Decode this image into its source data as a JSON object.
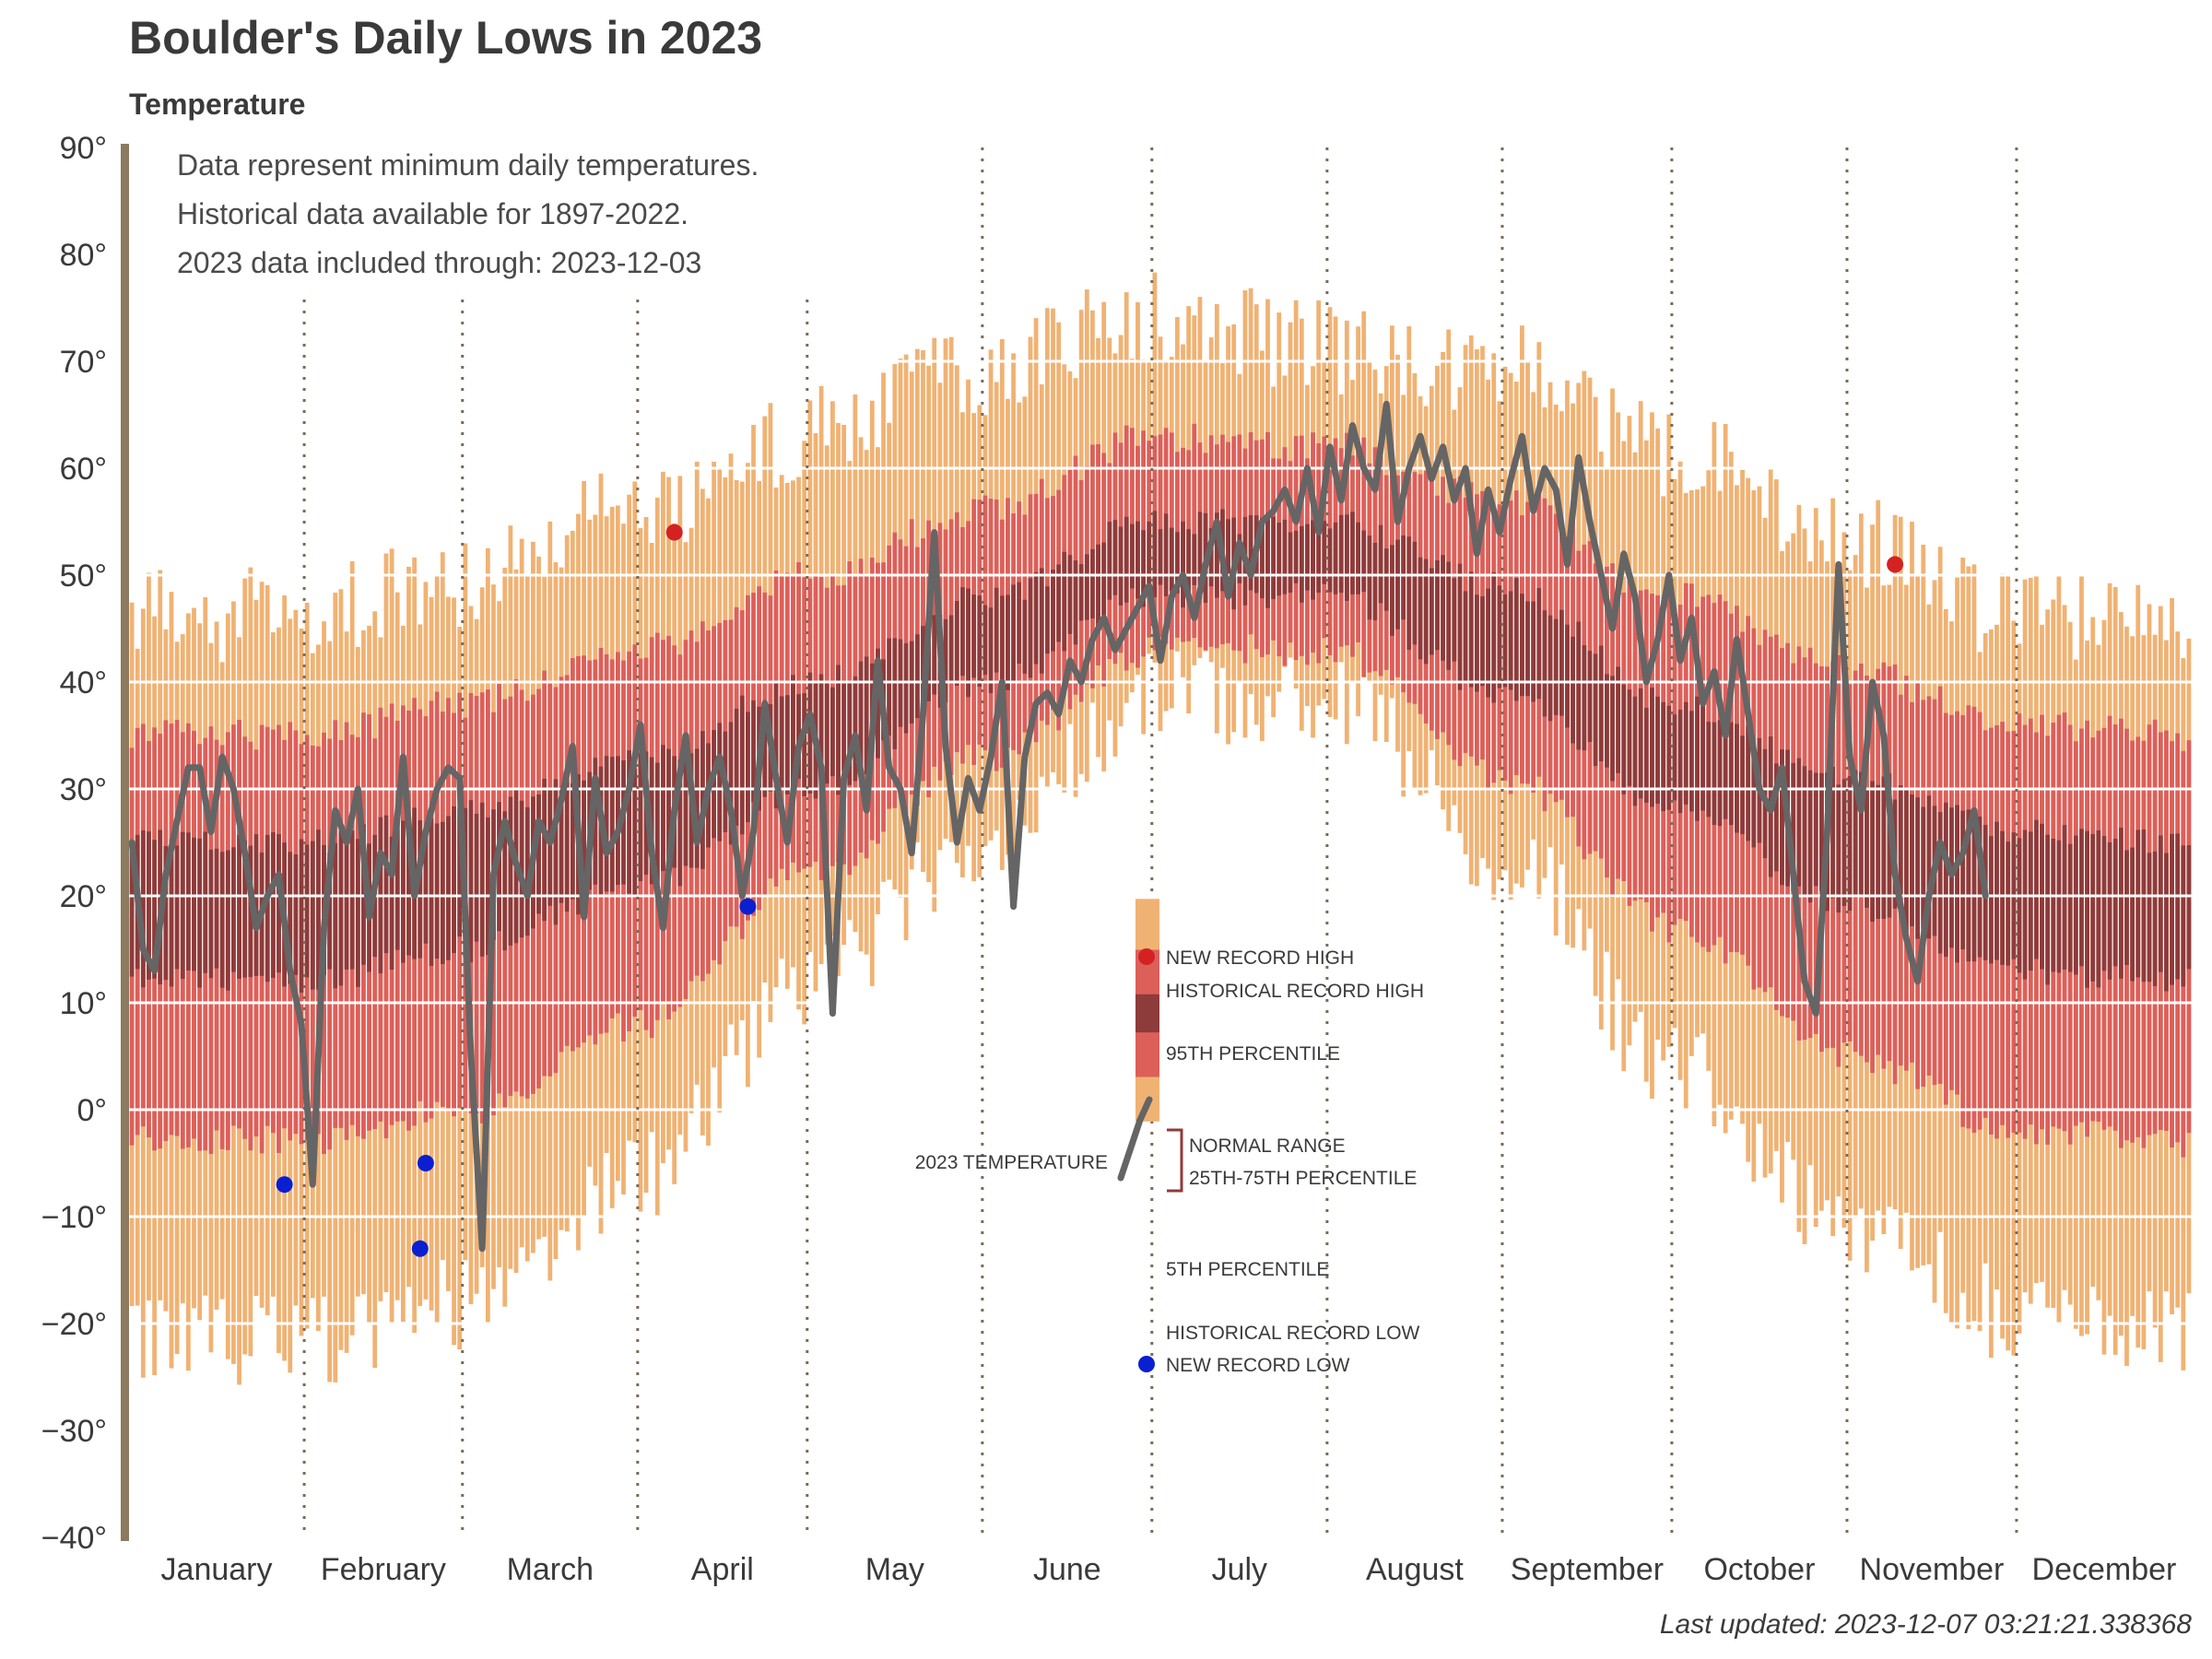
{
  "chart_data": {
    "type": "bar",
    "title": "Boulder's Daily Lows in 2023",
    "subtitle": "Temperature",
    "notes": [
      "Data represent minimum daily temperatures.",
      "Historical data available for 1897-2022.",
      "2023 data included through: 2023-12-03"
    ],
    "footer": "Last updated: 2023-12-07 03:21:21.338368",
    "xlabel": "",
    "ylabel": "",
    "ylim": [
      -40,
      90
    ],
    "yticks": [
      -40,
      -30,
      -20,
      -10,
      0,
      10,
      20,
      30,
      40,
      50,
      60,
      70,
      80,
      90
    ],
    "y_tick_labels": [
      "−40°",
      "−30°",
      "−20°",
      "−10°",
      "0°",
      "10°",
      "20°",
      "30°",
      "40°",
      "50°",
      "60°",
      "70°",
      "80°",
      "90°"
    ],
    "month_labels": [
      "January",
      "February",
      "March",
      "April",
      "May",
      "June",
      "July",
      "August",
      "September",
      "October",
      "November",
      "December"
    ],
    "grid": true,
    "colors": {
      "record_band": "#f0b273",
      "percentile_band": "#dd5f5a",
      "normal_band": "#8e3b3b",
      "temperature_line": "#656565",
      "new_record_high": "#d42222",
      "new_record_low": "#0a1fd0",
      "axis": "#8b7a60",
      "month_divider": "#7a6a55"
    },
    "seasonal_normals": {
      "description": "Historical envelope per day of year, read from bands (deg F)",
      "day_of_year": [
        1,
        32,
        60,
        91,
        121,
        152,
        182,
        213,
        244,
        274,
        305,
        335,
        365
      ],
      "record_high": [
        45,
        45,
        48,
        55,
        62,
        68,
        73,
        70,
        68,
        60,
        52,
        45,
        45
      ],
      "p95": [
        35,
        35,
        38,
        43,
        50,
        56,
        63,
        62,
        57,
        48,
        41,
        36,
        35
      ],
      "p75": [
        25,
        25,
        28,
        33,
        40,
        48,
        55,
        55,
        49,
        38,
        31,
        26,
        25
      ],
      "p25": [
        12,
        12,
        15,
        21,
        30,
        40,
        48,
        48,
        39,
        28,
        19,
        13,
        12
      ],
      "p05": [
        -3,
        -3,
        0,
        8,
        22,
        33,
        43,
        43,
        31,
        17,
        5,
        -2,
        -3
      ],
      "record_low": [
        -20,
        -20,
        -17,
        -5,
        13,
        27,
        40,
        40,
        25,
        5,
        -10,
        -18,
        -20
      ]
    },
    "series": [
      {
        "name": "2023 TEMPERATURE",
        "day_of_year": [
          1,
          3,
          5,
          7,
          9,
          11,
          13,
          15,
          17,
          19,
          21,
          23,
          25,
          27,
          29,
          31,
          33,
          35,
          37,
          39,
          41,
          43,
          45,
          47,
          49,
          51,
          53,
          55,
          57,
          59,
          61,
          63,
          65,
          67,
          69,
          71,
          73,
          75,
          77,
          79,
          81,
          83,
          85,
          87,
          89,
          91,
          93,
          95,
          97,
          99,
          101,
          103,
          105,
          107,
          109,
          111,
          113,
          115,
          117,
          119,
          121,
          123,
          125,
          127,
          129,
          131,
          133,
          135,
          137,
          139,
          141,
          143,
          145,
          147,
          149,
          151,
          153,
          155,
          157,
          159,
          161,
          163,
          165,
          167,
          169,
          171,
          173,
          175,
          177,
          179,
          181,
          183,
          185,
          187,
          189,
          191,
          193,
          195,
          197,
          199,
          201,
          203,
          205,
          207,
          209,
          211,
          213,
          215,
          217,
          219,
          221,
          223,
          225,
          227,
          229,
          231,
          233,
          235,
          237,
          239,
          241,
          243,
          245,
          247,
          249,
          251,
          253,
          255,
          257,
          259,
          261,
          263,
          265,
          267,
          269,
          271,
          273,
          275,
          277,
          279,
          281,
          283,
          285,
          287,
          289,
          291,
          293,
          295,
          297,
          299,
          301,
          303,
          305,
          307,
          309,
          311,
          313,
          315,
          317,
          319,
          321,
          323,
          325,
          327,
          329,
          331,
          333,
          335,
          337
        ],
        "values": [
          25,
          15,
          13,
          22,
          27,
          32,
          32,
          26,
          33,
          30,
          24,
          17,
          20,
          22,
          13,
          8,
          -7,
          17,
          28,
          25,
          30,
          18,
          24,
          22,
          33,
          20,
          26,
          30,
          32,
          31,
          5,
          -13,
          22,
          27,
          23,
          20,
          27,
          25,
          29,
          34,
          18,
          31,
          24,
          26,
          30,
          36,
          24,
          17,
          28,
          35,
          25,
          30,
          33,
          28,
          20,
          26,
          38,
          31,
          25,
          34,
          37,
          32,
          9,
          31,
          35,
          28,
          42,
          32,
          30,
          24,
          37,
          54,
          34,
          25,
          31,
          28,
          33,
          40,
          19,
          33,
          38,
          39,
          37,
          42,
          40,
          44,
          46,
          43,
          45,
          47,
          49,
          42,
          48,
          50,
          46,
          51,
          55,
          48,
          53,
          50,
          55,
          56,
          58,
          55,
          60,
          54,
          62,
          57,
          64,
          60,
          58,
          66,
          55,
          60,
          63,
          59,
          62,
          57,
          60,
          52,
          58,
          54,
          59,
          63,
          56,
          60,
          58,
          51,
          61,
          55,
          50,
          45,
          52,
          48,
          40,
          44,
          50,
          42,
          46,
          38,
          41,
          35,
          44,
          37,
          30,
          28,
          32,
          22,
          12,
          9,
          26,
          51,
          33,
          28,
          40,
          35,
          22,
          16,
          12,
          20,
          25,
          22,
          24,
          28,
          20
        ],
        "note": "values approximate, read from the drawn line"
      }
    ],
    "new_record_highs": [
      {
        "day_of_year": 97,
        "value": 54
      },
      {
        "day_of_year": 313,
        "value": 51
      }
    ],
    "new_record_lows": [
      {
        "day_of_year": 28,
        "value": -7
      },
      {
        "day_of_year": 52,
        "value": -13
      },
      {
        "day_of_year": 53,
        "value": -5
      },
      {
        "day_of_year": 110,
        "value": 19
      }
    ],
    "legend": {
      "placement": "center",
      "new_record_high": "NEW RECORD HIGH",
      "historical_record_high": "HISTORICAL RECORD HIGH",
      "p95": "95TH PERCENTILE",
      "normal_range": "NORMAL RANGE",
      "normal_range_sub": "25TH-75TH PERCENTILE",
      "p05": "5TH PERCENTILE",
      "historical_record_low": "HISTORICAL RECORD LOW",
      "new_record_low": "NEW RECORD LOW",
      "temperature": "2023 TEMPERATURE"
    }
  }
}
